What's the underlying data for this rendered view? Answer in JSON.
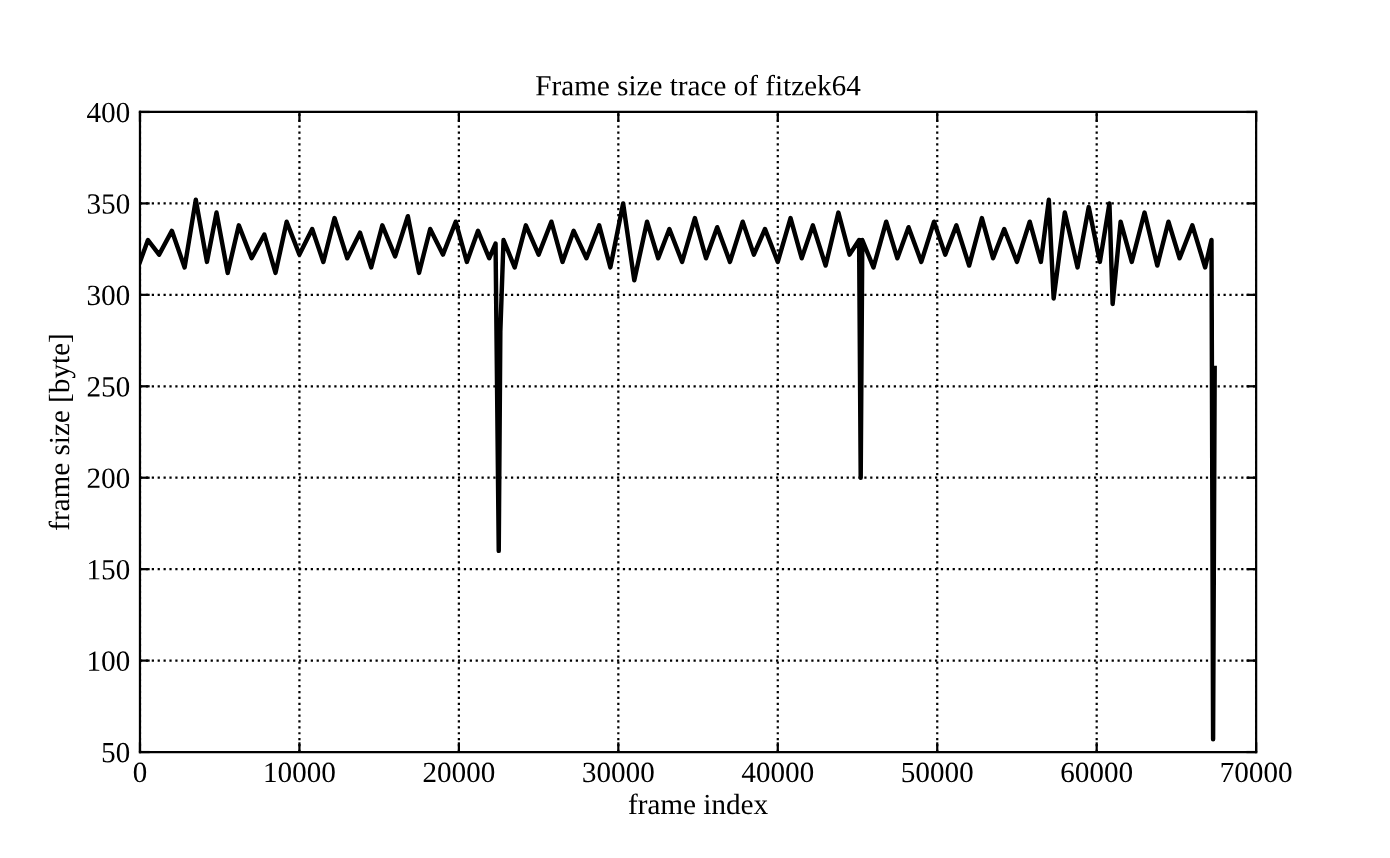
{
  "chart_data": {
    "type": "line",
    "title": "Frame size trace of fitzek64",
    "xlabel": "frame index",
    "ylabel": "frame size [byte]",
    "x": [
      0,
      500,
      1200,
      2000,
      2800,
      3500,
      4200,
      4800,
      5500,
      6200,
      7000,
      7800,
      8500,
      9200,
      10000,
      10800,
      11500,
      12200,
      13000,
      13800,
      14500,
      15200,
      16000,
      16800,
      17500,
      18200,
      19000,
      19800,
      20500,
      21200,
      21900,
      22300,
      22400,
      22500,
      22600,
      22800,
      23500,
      24200,
      25000,
      25800,
      26500,
      27200,
      28000,
      28800,
      29500,
      30300,
      31000,
      31800,
      32500,
      33200,
      34000,
      34800,
      35500,
      36200,
      37000,
      37800,
      38500,
      39200,
      40000,
      40800,
      41500,
      42200,
      43000,
      43800,
      44500,
      45100,
      45200,
      45300,
      46000,
      46800,
      47500,
      48200,
      49000,
      49800,
      50500,
      51200,
      52000,
      52800,
      53500,
      54200,
      55000,
      55800,
      56500,
      57000,
      57300,
      58000,
      58800,
      59500,
      60200,
      60800,
      61000,
      61500,
      62200,
      63000,
      63800,
      64500,
      65200,
      66000,
      66800,
      67200,
      67300,
      67400
    ],
    "series": [
      {
        "color": "#000000",
        "values": [
          318,
          330,
          322,
          335,
          315,
          352,
          318,
          345,
          312,
          338,
          320,
          333,
          312,
          340,
          322,
          336,
          318,
          342,
          320,
          334,
          315,
          338,
          321,
          343,
          312,
          336,
          322,
          340,
          318,
          335,
          320,
          328,
          245,
          160,
          280,
          330,
          315,
          338,
          322,
          340,
          318,
          335,
          320,
          338,
          315,
          350,
          308,
          340,
          320,
          336,
          318,
          342,
          320,
          337,
          318,
          340,
          322,
          336,
          318,
          342,
          320,
          338,
          316,
          345,
          322,
          330,
          200,
          330,
          315,
          340,
          320,
          337,
          318,
          340,
          322,
          338,
          316,
          342,
          320,
          336,
          318,
          340,
          318,
          352,
          298,
          345,
          315,
          348,
          318,
          350,
          295,
          340,
          318,
          345,
          316,
          340,
          320,
          338,
          315,
          330,
          57,
          260
        ]
      }
    ],
    "xlim": [
      0,
      70000
    ],
    "ylim": [
      50,
      400
    ],
    "xticks": [
      0,
      10000,
      20000,
      30000,
      40000,
      50000,
      60000,
      70000
    ],
    "yticks": [
      50,
      100,
      150,
      200,
      250,
      300,
      350,
      400
    ],
    "grid": true,
    "legend": false,
    "marker": "none",
    "line_style": "solid"
  }
}
